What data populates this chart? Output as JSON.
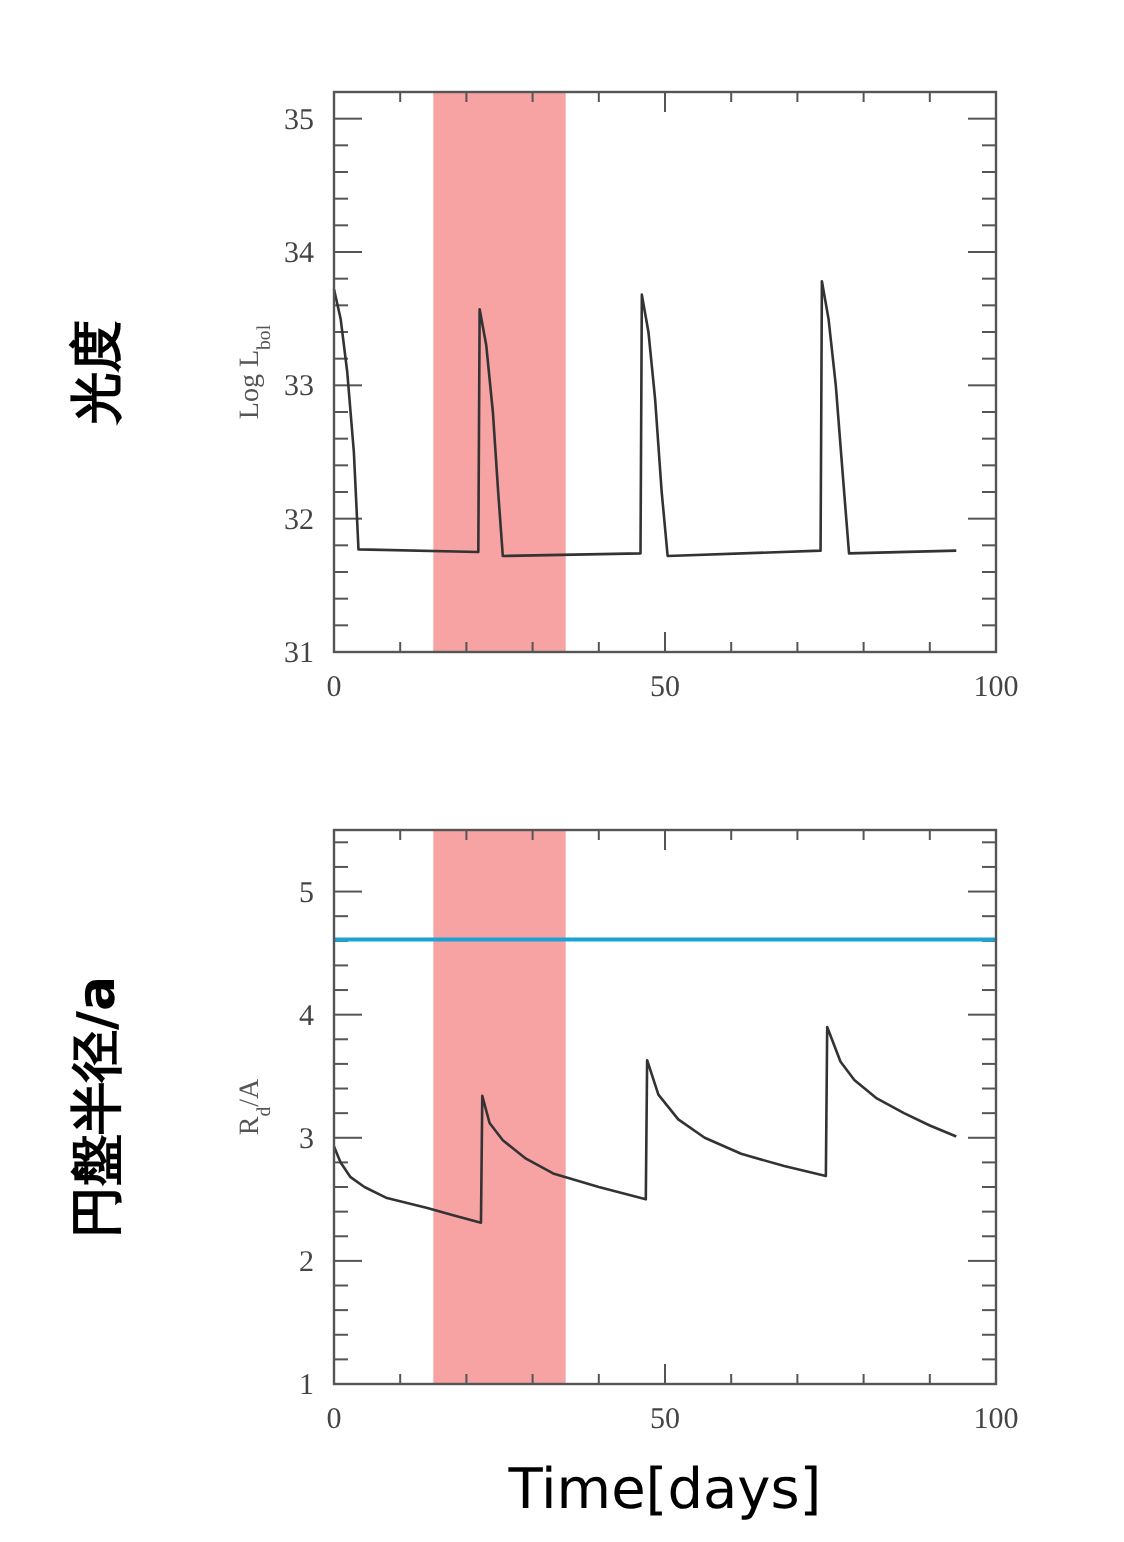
{
  "chart_data": [
    {
      "type": "line",
      "ylabel": "Log L$_{bol}$",
      "annotations": [
        "光度"
      ],
      "xlim": [
        0,
        100
      ],
      "xticks": [
        0,
        {
          "value": 10,
          "label": null
        },
        {
          "value": 20,
          "label": null
        },
        {
          "value": 30,
          "label": null
        },
        {
          "value": 40,
          "label": null
        },
        50,
        {
          "value": 60,
          "label": null
        },
        {
          "value": 70,
          "label": null
        },
        {
          "value": 80,
          "label": null
        },
        {
          "value": 90,
          "label": null
        },
        100
      ],
      "ylim": [
        31,
        35.2
      ],
      "yticks": [
        31,
        {
          "value": 31.2,
          "label": null
        },
        {
          "value": 31.4,
          "label": null
        },
        {
          "value": 31.6,
          "label": null
        },
        {
          "value": 31.8,
          "label": null
        },
        32,
        {
          "value": 32.2,
          "label": null
        },
        {
          "value": 32.4,
          "label": null
        },
        {
          "value": 32.6,
          "label": null
        },
        {
          "value": 32.8,
          "label": null
        },
        33,
        {
          "value": 33.2,
          "label": null
        },
        {
          "value": 33.4,
          "label": null
        },
        {
          "value": 33.6,
          "label": null
        },
        {
          "value": 33.8,
          "label": null
        },
        34,
        {
          "value": 34.2,
          "label": null
        },
        {
          "value": 34.4,
          "label": null
        },
        {
          "value": 34.6,
          "label": null
        },
        {
          "value": 34.8,
          "label": null
        },
        35
      ],
      "bands": [
        {
          "axis": "x",
          "from": 15,
          "to": 35,
          "color": "#f7a3a3"
        }
      ],
      "series": [
        {
          "color": "#333333",
          "x": [
            0,
            1,
            2,
            3,
            3.7,
            21.8,
            22,
            23,
            24,
            24.8,
            25.5,
            46.3,
            46.5,
            47.5,
            48.5,
            49.5,
            50.4,
            73.5,
            73.7,
            74.7,
            75.8,
            76.9,
            77.8,
            94
          ],
          "values": [
            33.72,
            33.5,
            33.1,
            32.5,
            31.77,
            31.75,
            33.57,
            33.3,
            32.8,
            32.2,
            31.72,
            31.74,
            33.68,
            33.4,
            32.9,
            32.2,
            31.72,
            31.76,
            33.78,
            33.5,
            33.0,
            32.3,
            31.74,
            31.76
          ]
        }
      ]
    },
    {
      "type": "line",
      "ylabel": "R$_{d}$/A",
      "annotations": [
        "円盤半径/a"
      ],
      "xlabel": "Time[days]",
      "xlim": [
        0,
        100
      ],
      "xticks": [
        0,
        {
          "value": 10,
          "label": null
        },
        {
          "value": 20,
          "label": null
        },
        {
          "value": 30,
          "label": null
        },
        {
          "value": 40,
          "label": null
        },
        50,
        {
          "value": 60,
          "label": null
        },
        {
          "value": 70,
          "label": null
        },
        {
          "value": 80,
          "label": null
        },
        {
          "value": 90,
          "label": null
        },
        100
      ],
      "ylim": [
        1,
        5.5
      ],
      "yticks": [
        1,
        {
          "value": 1.2,
          "label": null
        },
        {
          "value": 1.4,
          "label": null
        },
        {
          "value": 1.6,
          "label": null
        },
        {
          "value": 1.8,
          "label": null
        },
        2,
        {
          "value": 2.2,
          "label": null
        },
        {
          "value": 2.4,
          "label": null
        },
        {
          "value": 2.6,
          "label": null
        },
        {
          "value": 2.8,
          "label": null
        },
        3,
        {
          "value": 3.2,
          "label": null
        },
        {
          "value": 3.4,
          "label": null
        },
        {
          "value": 3.6,
          "label": null
        },
        {
          "value": 3.8,
          "label": null
        },
        4,
        {
          "value": 4.2,
          "label": null
        },
        {
          "value": 4.4,
          "label": null
        },
        {
          "value": 4.6,
          "label": null
        },
        {
          "value": 4.8,
          "label": null
        },
        5,
        {
          "value": 5.2,
          "label": null
        },
        {
          "value": 5.4,
          "label": null
        }
      ],
      "bands": [
        {
          "axis": "x",
          "from": 15,
          "to": 35,
          "color": "#f7a3a3"
        }
      ],
      "ref_lines": [
        {
          "axis": "y",
          "value": 4.61,
          "color": "#1aa3d4"
        }
      ],
      "series": [
        {
          "color": "#333333",
          "x": [
            0,
            1,
            2.5,
            4.6,
            8,
            14.1,
            18,
            22.2,
            22.4,
            23.5,
            25.5,
            29,
            33.1,
            40,
            47.1,
            47.3,
            49,
            52,
            56,
            61.5,
            68,
            74.3,
            74.5,
            76.5,
            78.6,
            82,
            86.1,
            90,
            94
          ],
          "values": [
            2.93,
            2.8,
            2.68,
            2.6,
            2.51,
            2.43,
            2.37,
            2.31,
            3.34,
            3.12,
            2.98,
            2.83,
            2.71,
            2.6,
            2.5,
            3.63,
            3.35,
            3.15,
            3.0,
            2.87,
            2.77,
            2.69,
            3.9,
            3.62,
            3.47,
            3.32,
            3.2,
            3.1,
            3.01
          ]
        }
      ]
    }
  ]
}
